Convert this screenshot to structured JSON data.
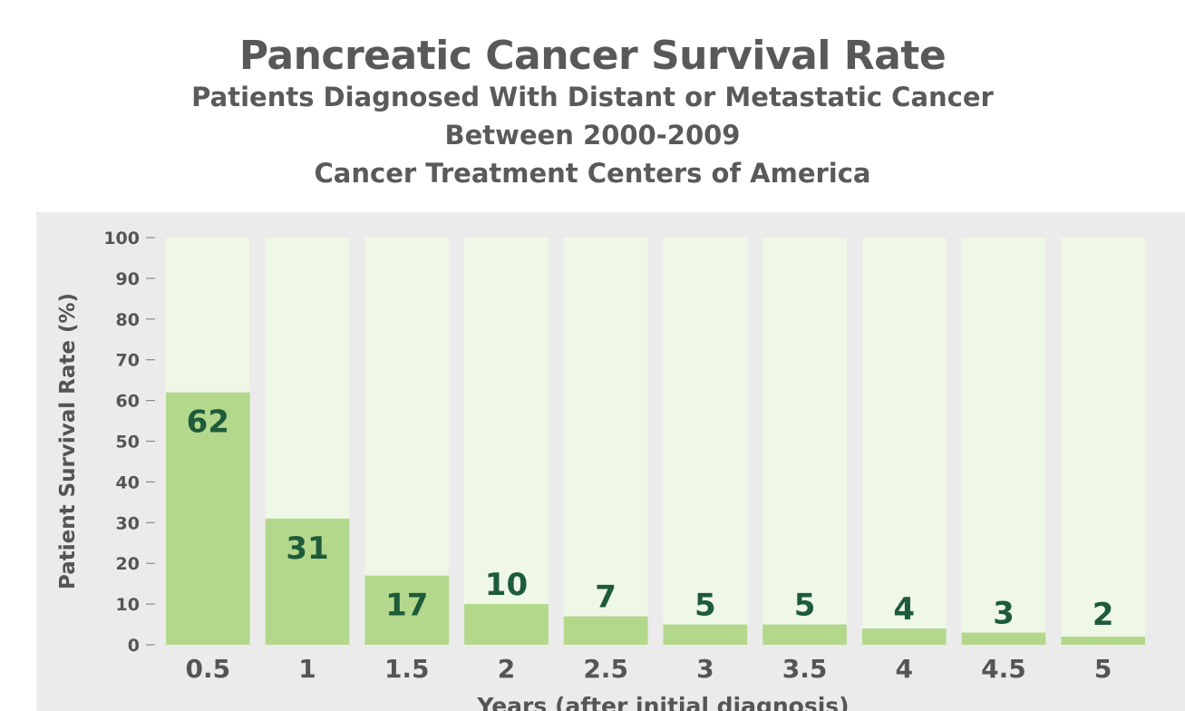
{
  "chart_data": {
    "type": "bar",
    "title": "Pancreatic Cancer Survival Rate",
    "subtitle": [
      "Patients Diagnosed With Distant or Metastatic Cancer",
      "Between 2000-2009",
      "Cancer Treatment Centers of America"
    ],
    "xlabel": "Years  (after initial diagnosis)",
    "ylabel": "Patient Survival Rate (%)",
    "ylim": [
      0,
      100
    ],
    "yticks": [
      0,
      10,
      20,
      30,
      40,
      50,
      60,
      70,
      80,
      90,
      100
    ],
    "categories": [
      "0.5",
      "1",
      "1.5",
      "2",
      "2.5",
      "3",
      "3.5",
      "4",
      "4.5",
      "5"
    ],
    "values": [
      62,
      31,
      17,
      10,
      7,
      5,
      5,
      4,
      3,
      2
    ],
    "data_labels": [
      "62",
      "31",
      "17",
      "10",
      "7",
      "5",
      "5",
      "4",
      "3",
      "2"
    ],
    "grid": false,
    "legend": "none",
    "colors": {
      "bar": "#b3d88c",
      "bar_background": "#eff7e7",
      "panel": "#ebebeb",
      "data_label": "#1e5b3a",
      "text": "#555555"
    }
  }
}
